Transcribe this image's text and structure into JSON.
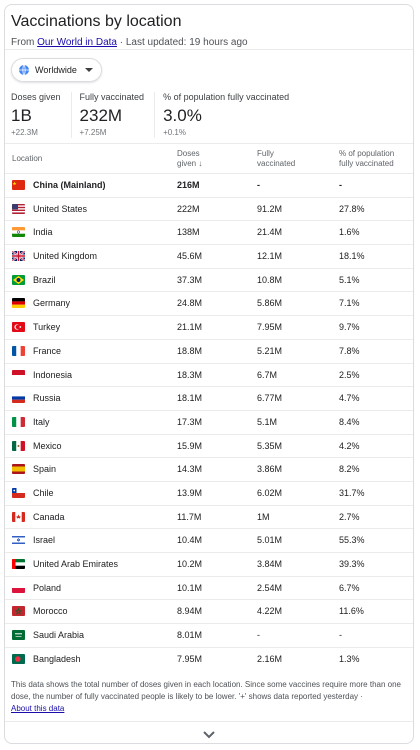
{
  "header": {
    "title": "Vaccinations by location",
    "source_prefix": "From",
    "source_link": "Our World in Data",
    "updated": "· Last updated: 19 hours ago"
  },
  "filter": {
    "label": "Worldwide",
    "icon": "globe-icon"
  },
  "stats": [
    {
      "label": "Doses given",
      "value": "1B",
      "delta": "+22.3M"
    },
    {
      "label": "Fully vaccinated",
      "value": "232M",
      "delta": "+7.25M"
    },
    {
      "label": "% of population fully vaccinated",
      "value": "3.0%",
      "delta": "+0.1%"
    }
  ],
  "table": {
    "headers": {
      "location": "Location",
      "doses_1": "Doses",
      "doses_2": "given ↓",
      "fully_1": "Fully",
      "fully_2": "vaccinated",
      "pct_1": "% of population",
      "pct_2": "fully vaccinated"
    },
    "rows": [
      {
        "name": "China (Mainland)",
        "doses": "216M",
        "fully": "-",
        "pct": "-",
        "bold": true,
        "flag": "cn"
      },
      {
        "name": "United States",
        "doses": "222M",
        "fully": "91.2M",
        "pct": "27.8%",
        "flag": "us"
      },
      {
        "name": "India",
        "doses": "138M",
        "fully": "21.4M",
        "pct": "1.6%",
        "flag": "in"
      },
      {
        "name": "United Kingdom",
        "doses": "45.6M",
        "fully": "12.1M",
        "pct": "18.1%",
        "flag": "gb"
      },
      {
        "name": "Brazil",
        "doses": "37.3M",
        "fully": "10.8M",
        "pct": "5.1%",
        "flag": "br"
      },
      {
        "name": "Germany",
        "doses": "24.8M",
        "fully": "5.86M",
        "pct": "7.1%",
        "flag": "de"
      },
      {
        "name": "Turkey",
        "doses": "21.1M",
        "fully": "7.95M",
        "pct": "9.7%",
        "flag": "tr"
      },
      {
        "name": "France",
        "doses": "18.8M",
        "fully": "5.21M",
        "pct": "7.8%",
        "flag": "fr"
      },
      {
        "name": "Indonesia",
        "doses": "18.3M",
        "fully": "6.7M",
        "pct": "2.5%",
        "flag": "id"
      },
      {
        "name": "Russia",
        "doses": "18.1M",
        "fully": "6.77M",
        "pct": "4.7%",
        "flag": "ru"
      },
      {
        "name": "Italy",
        "doses": "17.3M",
        "fully": "5.1M",
        "pct": "8.4%",
        "flag": "it"
      },
      {
        "name": "Mexico",
        "doses": "15.9M",
        "fully": "5.35M",
        "pct": "4.2%",
        "flag": "mx"
      },
      {
        "name": "Spain",
        "doses": "14.3M",
        "fully": "3.86M",
        "pct": "8.2%",
        "flag": "es"
      },
      {
        "name": "Chile",
        "doses": "13.9M",
        "fully": "6.02M",
        "pct": "31.7%",
        "flag": "cl"
      },
      {
        "name": "Canada",
        "doses": "11.7M",
        "fully": "1M",
        "pct": "2.7%",
        "flag": "ca"
      },
      {
        "name": "Israel",
        "doses": "10.4M",
        "fully": "5.01M",
        "pct": "55.3%",
        "flag": "il"
      },
      {
        "name": "United Arab Emirates",
        "doses": "10.2M",
        "fully": "3.84M",
        "pct": "39.3%",
        "flag": "ae"
      },
      {
        "name": "Poland",
        "doses": "10.1M",
        "fully": "2.54M",
        "pct": "6.7%",
        "flag": "pl"
      },
      {
        "name": "Morocco",
        "doses": "8.94M",
        "fully": "4.22M",
        "pct": "11.6%",
        "flag": "ma"
      },
      {
        "name": "Saudi Arabia",
        "doses": "8.01M",
        "fully": "-",
        "pct": "-",
        "flag": "sa"
      },
      {
        "name": "Bangladesh",
        "doses": "7.95M",
        "fully": "2.16M",
        "pct": "1.3%",
        "flag": "bd"
      }
    ]
  },
  "footer": {
    "note": "This data shows the total number of doses given in each location. Since some vaccines require more than one dose, the number of fully vaccinated people is likely to be lower. '+' shows data reported yesterday ·",
    "about": "About this data",
    "expand_icon": "chevron-down-icon"
  }
}
